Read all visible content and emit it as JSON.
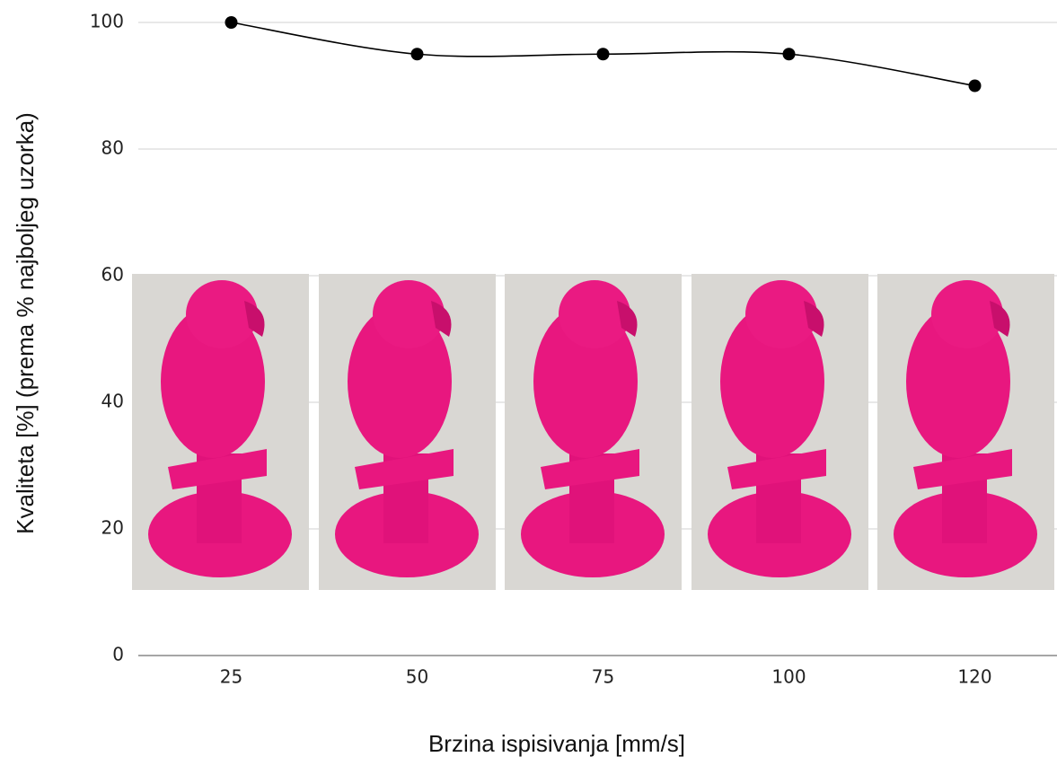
{
  "chart_data": {
    "type": "line",
    "x_label": "Brzina ispisivanja [mm/s]",
    "y_label": "Kvaliteta [%] (prema % najboljeg uzorka)",
    "categories": [
      "25",
      "50",
      "75",
      "100",
      "120"
    ],
    "series": [
      {
        "values": [
          100,
          95,
          95,
          95,
          90
        ],
        "color": "#000000"
      }
    ],
    "ylim": [
      0,
      100
    ],
    "yticks": [
      0,
      20,
      40,
      60,
      80,
      100
    ],
    "grid": true
  }
}
